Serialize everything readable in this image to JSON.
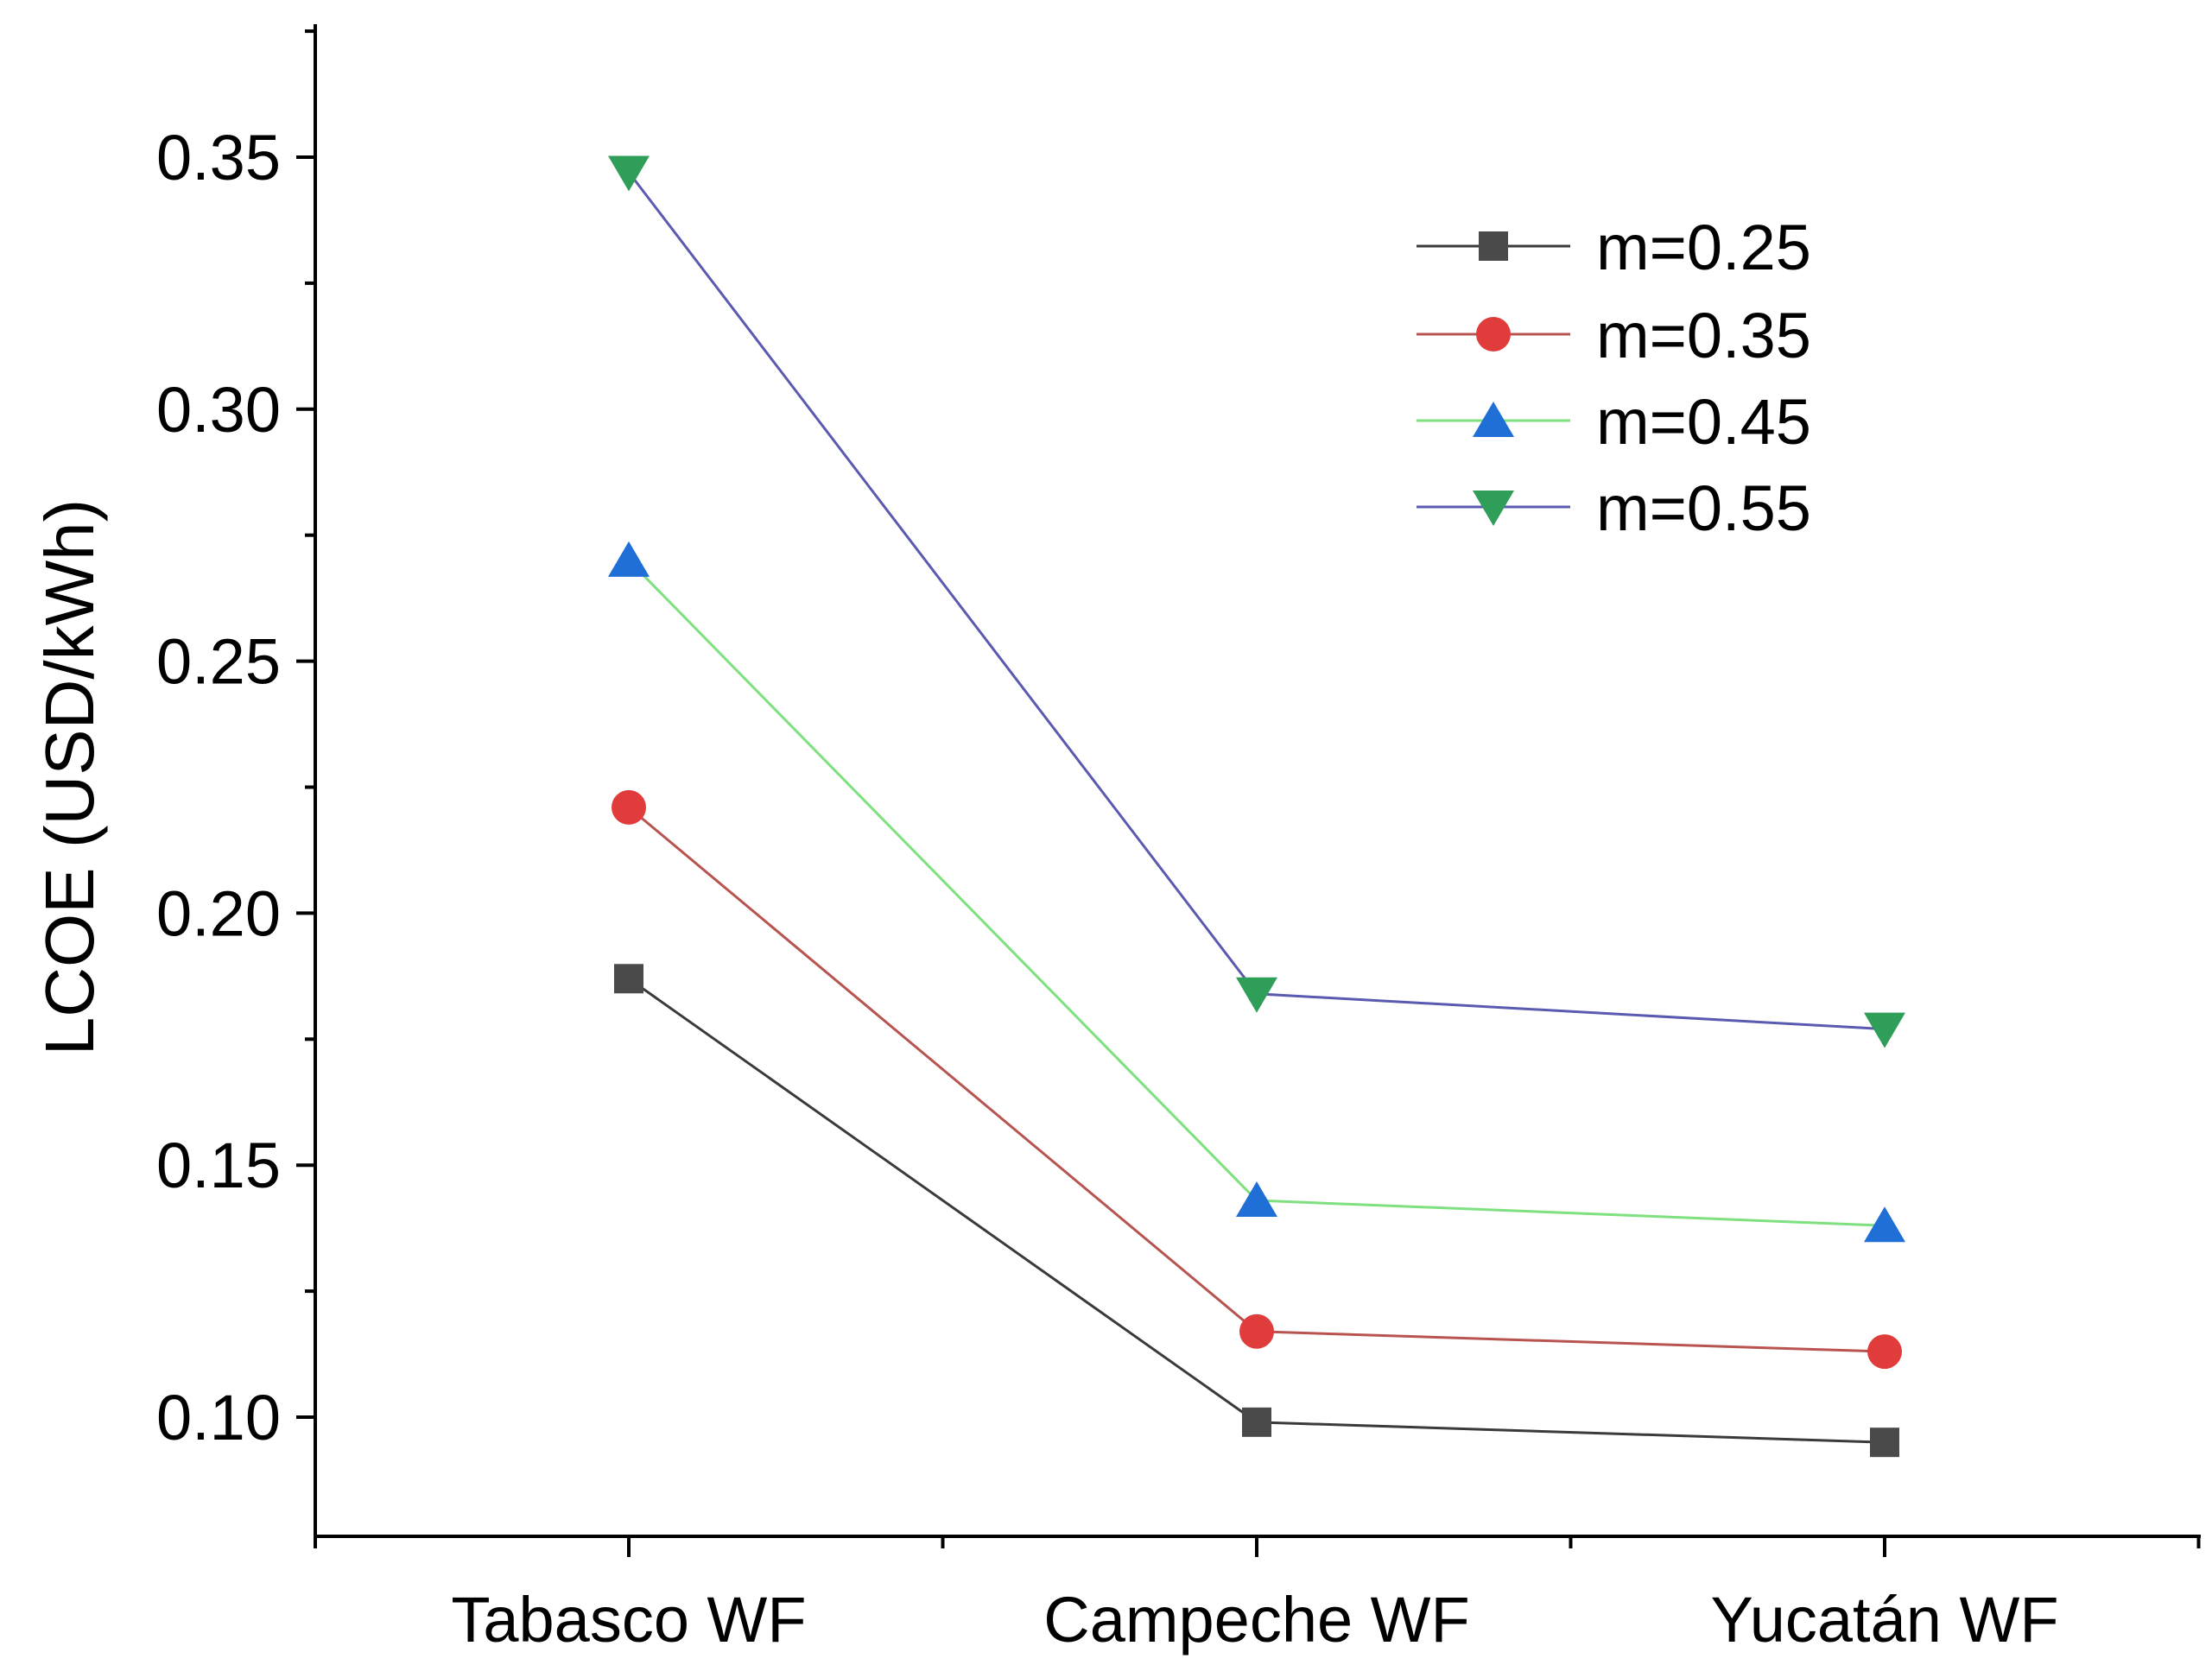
{
  "chart_data": {
    "type": "line",
    "title": "",
    "xlabel": "",
    "ylabel": "LCOE (USD/kWh)",
    "ylim": [
      0.0755,
      0.3755
    ],
    "yticks": [
      0.1,
      0.15,
      0.2,
      0.25,
      0.3,
      0.35
    ],
    "ytick_labels": [
      "0.10",
      "0.15",
      "0.20",
      "0.25",
      "0.30",
      "0.35"
    ],
    "categories": [
      "Tabasco WF",
      "Campeche WF",
      "Yucatán WF"
    ],
    "legend_position": "top-right",
    "series": [
      {
        "name": "m=0.25",
        "values": [
          0.187,
          0.099,
          0.095
        ],
        "line_color": "#3a3a3a",
        "marker_color": "#4a4a4a",
        "marker": "square"
      },
      {
        "name": "m=0.35",
        "values": [
          0.221,
          0.117,
          0.113
        ],
        "line_color": "#b85450",
        "marker_color": "#e03c3c",
        "marker": "circle"
      },
      {
        "name": "m=0.45",
        "values": [
          0.27,
          0.143,
          0.138
        ],
        "line_color": "#7ee07e",
        "marker_color": "#1f6fd6",
        "marker": "triangle-up"
      },
      {
        "name": "m=0.55",
        "values": [
          0.347,
          0.184,
          0.177
        ],
        "line_color": "#5a5ab0",
        "marker_color": "#2e9e58",
        "marker": "triangle-down"
      }
    ]
  }
}
